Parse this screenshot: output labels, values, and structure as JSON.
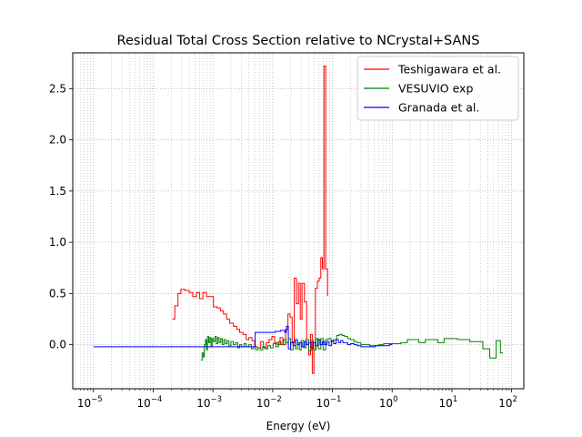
{
  "chart_data": {
    "type": "line",
    "title": "Residual Total Cross Section relative to NCrystal+SANS",
    "xlabel": "Energy (eV)",
    "ylabel": "",
    "xscale": "log",
    "xlim": [
      4.5e-06,
      160
    ],
    "ylim": [
      -0.43,
      2.85
    ],
    "grid": {
      "major": true,
      "minor": true,
      "style": "dotted"
    },
    "legend_position": "top-right",
    "x_ticks": [
      {
        "value": 1e-05,
        "base": "10",
        "exp": "−5"
      },
      {
        "value": 0.0001,
        "base": "10",
        "exp": "−4"
      },
      {
        "value": 0.001,
        "base": "10",
        "exp": "−3"
      },
      {
        "value": 0.01,
        "base": "10",
        "exp": "−2"
      },
      {
        "value": 0.1,
        "base": "10",
        "exp": "−1"
      },
      {
        "value": 1,
        "base": "10",
        "exp": "0"
      },
      {
        "value": 10,
        "base": "10",
        "exp": "1"
      },
      {
        "value": 100,
        "base": "10",
        "exp": "2"
      }
    ],
    "y_ticks": [
      {
        "value": 0.0,
        "label": "0.0"
      },
      {
        "value": 0.5,
        "label": "0.5"
      },
      {
        "value": 1.0,
        "label": "1.0"
      },
      {
        "value": 1.5,
        "label": "1.5"
      },
      {
        "value": 2.0,
        "label": "2.0"
      },
      {
        "value": 2.5,
        "label": "2.5"
      }
    ],
    "series": [
      {
        "name": "Teshigawara et al.",
        "color": "#ff0000",
        "points": [
          [
            0.00021,
            0.25
          ],
          [
            0.00023,
            0.38
          ],
          [
            0.00026,
            0.5
          ],
          [
            0.00029,
            0.54
          ],
          [
            0.00034,
            0.53
          ],
          [
            0.0004,
            0.51
          ],
          [
            0.00046,
            0.47
          ],
          [
            0.00053,
            0.51
          ],
          [
            0.0006,
            0.45
          ],
          [
            0.00068,
            0.51
          ],
          [
            0.00078,
            0.47
          ],
          [
            0.0009,
            0.47
          ],
          [
            0.00102,
            0.37
          ],
          [
            0.00117,
            0.36
          ],
          [
            0.00133,
            0.33
          ],
          [
            0.0015,
            0.3
          ],
          [
            0.0017,
            0.25
          ],
          [
            0.0019,
            0.21
          ],
          [
            0.0022,
            0.18
          ],
          [
            0.0025,
            0.15
          ],
          [
            0.0028,
            0.12
          ],
          [
            0.0032,
            0.1
          ],
          [
            0.0036,
            0.05
          ],
          [
            0.004,
            0.07
          ],
          [
            0.0045,
            0.04
          ],
          [
            0.005,
            -0.02
          ],
          [
            0.0056,
            -0.03
          ],
          [
            0.0063,
            0.03
          ],
          [
            0.007,
            -0.03
          ],
          [
            0.0078,
            0.02
          ],
          [
            0.0087,
            0.05
          ],
          [
            0.0097,
            0.08
          ],
          [
            0.0108,
            0.02
          ],
          [
            0.012,
            0.0
          ],
          [
            0.0133,
            0.07
          ],
          [
            0.0148,
            0.0
          ],
          [
            0.0165,
            0.15
          ],
          [
            0.018,
            0.3
          ],
          [
            0.0195,
            0.27
          ],
          [
            0.0212,
            0.02
          ],
          [
            0.023,
            0.65
          ],
          [
            0.025,
            0.4
          ],
          [
            0.027,
            0.6
          ],
          [
            0.029,
            0.25
          ],
          [
            0.031,
            0.6
          ],
          [
            0.034,
            0.42
          ],
          [
            0.037,
            0.05
          ],
          [
            0.04,
            -0.1
          ],
          [
            0.043,
            0.1
          ],
          [
            0.046,
            -0.28
          ],
          [
            0.049,
            -0.05
          ],
          [
            0.052,
            0.55
          ],
          [
            0.056,
            0.62
          ],
          [
            0.06,
            0.65
          ],
          [
            0.064,
            0.85
          ],
          [
            0.068,
            0.74
          ],
          [
            0.072,
            2.72
          ],
          [
            0.077,
            0.74
          ],
          [
            0.083,
            0.48
          ],
          [
            0.085,
            0.48
          ]
        ]
      },
      {
        "name": "VESUVIO exp",
        "color": "#008000",
        "points": [
          [
            0.00063,
            -0.15
          ],
          [
            0.00066,
            -0.08
          ],
          [
            0.00069,
            -0.12
          ],
          [
            0.00072,
            0.0
          ],
          [
            0.00075,
            0.05
          ],
          [
            0.00078,
            -0.05
          ],
          [
            0.00081,
            0.08
          ],
          [
            0.00085,
            0.02
          ],
          [
            0.00089,
            0.07
          ],
          [
            0.00093,
            -0.02
          ],
          [
            0.00097,
            0.06
          ],
          [
            0.00102,
            0.03
          ],
          [
            0.00108,
            0.08
          ],
          [
            0.00114,
            0.01
          ],
          [
            0.0012,
            0.07
          ],
          [
            0.00127,
            0.02
          ],
          [
            0.00135,
            0.06
          ],
          [
            0.00143,
            0.0
          ],
          [
            0.00152,
            0.05
          ],
          [
            0.00162,
            0.01
          ],
          [
            0.00173,
            0.04
          ],
          [
            0.00185,
            -0.01
          ],
          [
            0.002,
            0.03
          ],
          [
            0.0022,
            0.0
          ],
          [
            0.0024,
            0.02
          ],
          [
            0.0026,
            -0.03
          ],
          [
            0.0028,
            0.0
          ],
          [
            0.003,
            -0.02
          ],
          [
            0.0033,
            0.01
          ],
          [
            0.0036,
            -0.02
          ],
          [
            0.004,
            0.0
          ],
          [
            0.0044,
            -0.04
          ],
          [
            0.0048,
            -0.02
          ],
          [
            0.0052,
            -0.05
          ],
          [
            0.0057,
            -0.03
          ],
          [
            0.0062,
            -0.05
          ],
          [
            0.0068,
            -0.02
          ],
          [
            0.0075,
            -0.04
          ],
          [
            0.0083,
            -0.01
          ],
          [
            0.0092,
            -0.03
          ],
          [
            0.0102,
            0.01
          ],
          [
            0.0113,
            -0.02
          ],
          [
            0.0125,
            0.03
          ],
          [
            0.0138,
            0.0
          ],
          [
            0.0152,
            0.05
          ],
          [
            0.0167,
            0.02
          ],
          [
            0.0183,
            0.06
          ],
          [
            0.02,
            -0.05
          ],
          [
            0.022,
            0.03
          ],
          [
            0.024,
            -0.04
          ],
          [
            0.026,
            0.02
          ],
          [
            0.028,
            -0.05
          ],
          [
            0.03,
            0.04
          ],
          [
            0.033,
            -0.03
          ],
          [
            0.036,
            0.05
          ],
          [
            0.04,
            -0.06
          ],
          [
            0.044,
            0.04
          ],
          [
            0.048,
            -0.05
          ],
          [
            0.053,
            0.06
          ],
          [
            0.058,
            -0.04
          ],
          [
            0.064,
            0.06
          ],
          [
            0.07,
            -0.05
          ],
          [
            0.077,
            0.05
          ],
          [
            0.085,
            0.06
          ],
          [
            0.095,
            0.03
          ],
          [
            0.105,
            0.05
          ],
          [
            0.118,
            0.09
          ],
          [
            0.13,
            0.1
          ],
          [
            0.145,
            0.09
          ],
          [
            0.16,
            0.08
          ],
          [
            0.18,
            0.06
          ],
          [
            0.2,
            0.05
          ],
          [
            0.23,
            0.03
          ],
          [
            0.26,
            0.02
          ],
          [
            0.3,
            0.0
          ],
          [
            0.36,
            0.0
          ],
          [
            0.42,
            -0.01
          ],
          [
            0.5,
            -0.01
          ],
          [
            0.6,
            0.0
          ],
          [
            0.72,
            0.01
          ],
          [
            0.9,
            0.01
          ],
          [
            1.1,
            0.01
          ],
          [
            1.4,
            0.02
          ],
          [
            1.8,
            0.05
          ],
          [
            2.2,
            0.05
          ],
          [
            2.8,
            0.02
          ],
          [
            3.6,
            0.05
          ],
          [
            4.6,
            0.05
          ],
          [
            5.8,
            0.02
          ],
          [
            7.4,
            0.06
          ],
          [
            9.6,
            0.06
          ],
          [
            12.4,
            0.05
          ],
          [
            16,
            0.05
          ],
          [
            20,
            0.03
          ],
          [
            26,
            0.03
          ],
          [
            33,
            -0.04
          ],
          [
            43,
            -0.13
          ],
          [
            55,
            0.04
          ],
          [
            65,
            -0.08
          ],
          [
            72,
            -0.08
          ]
        ]
      },
      {
        "name": "Granada et al.",
        "color": "#0000ff",
        "points": [
          [
            1e-05,
            -0.02
          ],
          [
            0.0003,
            -0.02
          ],
          [
            0.001,
            -0.02
          ],
          [
            0.003,
            -0.02
          ],
          [
            0.005,
            -0.02
          ],
          [
            0.0051,
            0.12
          ],
          [
            0.0065,
            0.12
          ],
          [
            0.008,
            0.12
          ],
          [
            0.0095,
            0.12
          ],
          [
            0.011,
            0.13
          ],
          [
            0.0135,
            0.14
          ],
          [
            0.016,
            0.12
          ],
          [
            0.017,
            0.18
          ],
          [
            0.0183,
            -0.04
          ],
          [
            0.02,
            0.02
          ],
          [
            0.022,
            -0.01
          ],
          [
            0.024,
            0.05
          ],
          [
            0.026,
            0.0
          ],
          [
            0.028,
            0.02
          ],
          [
            0.031,
            -0.02
          ],
          [
            0.034,
            0.03
          ],
          [
            0.037,
            0.0
          ],
          [
            0.04,
            0.02
          ],
          [
            0.044,
            -0.03
          ],
          [
            0.048,
            0.02
          ],
          [
            0.052,
            -0.01
          ],
          [
            0.057,
            0.05
          ],
          [
            0.062,
            0.0
          ],
          [
            0.068,
            0.03
          ],
          [
            0.074,
            0.0
          ],
          [
            0.081,
            0.03
          ],
          [
            0.088,
            -0.01
          ],
          [
            0.096,
            0.04
          ],
          [
            0.105,
            0.01
          ],
          [
            0.115,
            0.05
          ],
          [
            0.126,
            0.02
          ],
          [
            0.138,
            0.04
          ],
          [
            0.15,
            0.02
          ],
          [
            0.165,
            0.02
          ],
          [
            0.18,
            0.0
          ],
          [
            0.2,
            0.01
          ],
          [
            0.23,
            0.0
          ],
          [
            0.26,
            -0.01
          ],
          [
            0.3,
            -0.02
          ],
          [
            0.36,
            -0.02
          ],
          [
            0.43,
            -0.02
          ],
          [
            0.52,
            -0.01
          ],
          [
            0.62,
            -0.01
          ],
          [
            0.75,
            -0.01
          ],
          [
            0.9,
            0.0
          ],
          [
            1.0,
            0.0
          ]
        ]
      }
    ]
  }
}
